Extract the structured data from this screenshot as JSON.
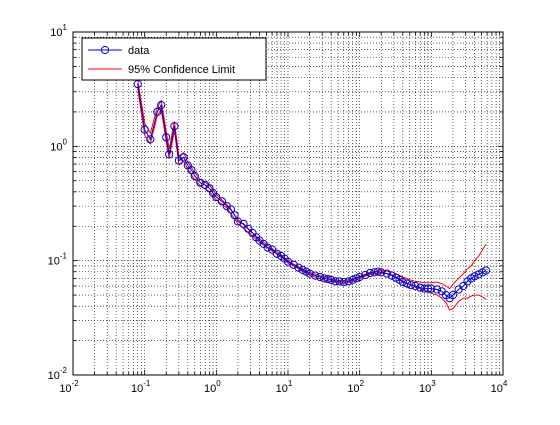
{
  "chart_data": {
    "type": "line",
    "title": "",
    "xlabel": "",
    "ylabel": "",
    "xscale": "log",
    "yscale": "log",
    "xlim": [
      0.01,
      10000
    ],
    "ylim": [
      0.01,
      10
    ],
    "grid": "on",
    "legend_position": "top-left",
    "x_ticks": [
      {
        "base": "10",
        "exp": "-2"
      },
      {
        "base": "10",
        "exp": "-1"
      },
      {
        "base": "10",
        "exp": "0"
      },
      {
        "base": "10",
        "exp": "1"
      },
      {
        "base": "10",
        "exp": "2"
      },
      {
        "base": "10",
        "exp": "3"
      },
      {
        "base": "10",
        "exp": "4"
      }
    ],
    "y_ticks": [
      {
        "base": "10",
        "exp": "-2"
      },
      {
        "base": "10",
        "exp": "-1"
      },
      {
        "base": "10",
        "exp": "0"
      },
      {
        "base": "10",
        "exp": "1"
      }
    ],
    "series": [
      {
        "name": "data",
        "color": "#0000cc",
        "marker": "circle",
        "x": [
          0.08,
          0.1,
          0.12,
          0.15,
          0.17,
          0.2,
          0.22,
          0.26,
          0.3,
          0.35,
          0.4,
          0.45,
          0.5,
          0.6,
          0.7,
          0.8,
          0.9,
          1.0,
          1.2,
          1.4,
          1.6,
          1.8,
          2.0,
          2.4,
          2.8,
          3.2,
          3.6,
          4.0,
          4.6,
          5.2,
          6.0,
          7.0,
          8.0,
          9.0,
          10,
          12,
          14,
          16,
          18,
          20,
          24,
          28,
          32,
          36,
          40,
          46,
          52,
          60,
          70,
          80,
          90,
          100,
          120,
          140,
          160,
          180,
          200,
          240,
          280,
          320,
          360,
          400,
          460,
          520,
          600,
          700,
          800,
          900,
          1000,
          1200,
          1400,
          1600,
          1800,
          2000,
          2400,
          2800,
          3200,
          3600,
          4000,
          4600,
          5200,
          5800
        ],
        "y": [
          3.5,
          1.4,
          1.15,
          2.0,
          2.3,
          1.2,
          0.85,
          1.5,
          0.75,
          0.8,
          0.68,
          0.62,
          0.55,
          0.48,
          0.46,
          0.43,
          0.39,
          0.36,
          0.33,
          0.3,
          0.28,
          0.25,
          0.22,
          0.21,
          0.19,
          0.175,
          0.16,
          0.15,
          0.14,
          0.13,
          0.125,
          0.115,
          0.11,
          0.104,
          0.098,
          0.092,
          0.087,
          0.083,
          0.08,
          0.077,
          0.074,
          0.072,
          0.07,
          0.069,
          0.068,
          0.066,
          0.066,
          0.065,
          0.066,
          0.068,
          0.07,
          0.072,
          0.075,
          0.078,
          0.079,
          0.08,
          0.079,
          0.077,
          0.074,
          0.071,
          0.068,
          0.065,
          0.063,
          0.061,
          0.06,
          0.058,
          0.057,
          0.057,
          0.057,
          0.056,
          0.054,
          0.05,
          0.047,
          0.05,
          0.056,
          0.06,
          0.066,
          0.07,
          0.073,
          0.076,
          0.079,
          0.082
        ]
      },
      {
        "name": "95% Confidence Limit",
        "color": "#ff0000",
        "x": [
          0.08,
          0.1,
          0.12,
          0.15,
          0.17,
          0.2,
          0.22,
          0.26,
          0.3,
          0.35,
          0.4,
          0.5,
          0.6,
          0.8,
          1.0,
          1.4,
          2.0,
          3.0,
          4.0,
          6.0,
          8.0,
          10,
          14,
          20,
          30,
          40,
          50,
          60,
          80,
          100,
          140,
          200,
          280,
          400,
          500,
          600,
          800,
          1000,
          1200,
          1400,
          1600,
          1800,
          2000,
          2400,
          2800,
          3200,
          3600,
          4000,
          4600,
          5200,
          5800
        ],
        "y": [
          3.8,
          1.6,
          1.3,
          2.2,
          2.5,
          1.35,
          0.95,
          1.65,
          0.82,
          0.88,
          0.73,
          0.59,
          0.51,
          0.46,
          0.38,
          0.31,
          0.23,
          0.18,
          0.155,
          0.128,
          0.112,
          0.1,
          0.088,
          0.079,
          0.073,
          0.07,
          0.067,
          0.067,
          0.069,
          0.073,
          0.079,
          0.082,
          0.08,
          0.072,
          0.068,
          0.066,
          0.064,
          0.064,
          0.065,
          0.063,
          0.06,
          0.057,
          0.062,
          0.07,
          0.077,
          0.085,
          0.09,
          0.1,
          0.11,
          0.125,
          0.14
        ]
      },
      {
        "name": "",
        "color": "#ff0000",
        "x": [
          0.08,
          0.1,
          0.12,
          0.15,
          0.17,
          0.2,
          0.22,
          0.26,
          0.3,
          0.35,
          0.4,
          0.5,
          0.6,
          0.8,
          1.0,
          1.4,
          2.0,
          3.0,
          4.0,
          6.0,
          8.0,
          10,
          14,
          20,
          30,
          40,
          50,
          60,
          80,
          100,
          140,
          200,
          280,
          400,
          500,
          600,
          800,
          1000,
          1200,
          1400,
          1600,
          1800,
          2000,
          2400,
          2800,
          3200,
          3600,
          4000,
          4600,
          5200,
          5800
        ],
        "y": [
          3.2,
          1.25,
          1.05,
          1.85,
          2.1,
          1.1,
          0.78,
          1.38,
          0.69,
          0.74,
          0.63,
          0.51,
          0.45,
          0.4,
          0.34,
          0.29,
          0.21,
          0.17,
          0.145,
          0.122,
          0.108,
          0.096,
          0.085,
          0.075,
          0.068,
          0.066,
          0.064,
          0.063,
          0.066,
          0.07,
          0.076,
          0.078,
          0.076,
          0.066,
          0.062,
          0.059,
          0.055,
          0.052,
          0.05,
          0.047,
          0.043,
          0.037,
          0.038,
          0.044,
          0.047,
          0.047,
          0.049,
          0.05,
          0.05,
          0.048,
          0.046
        ]
      }
    ]
  }
}
